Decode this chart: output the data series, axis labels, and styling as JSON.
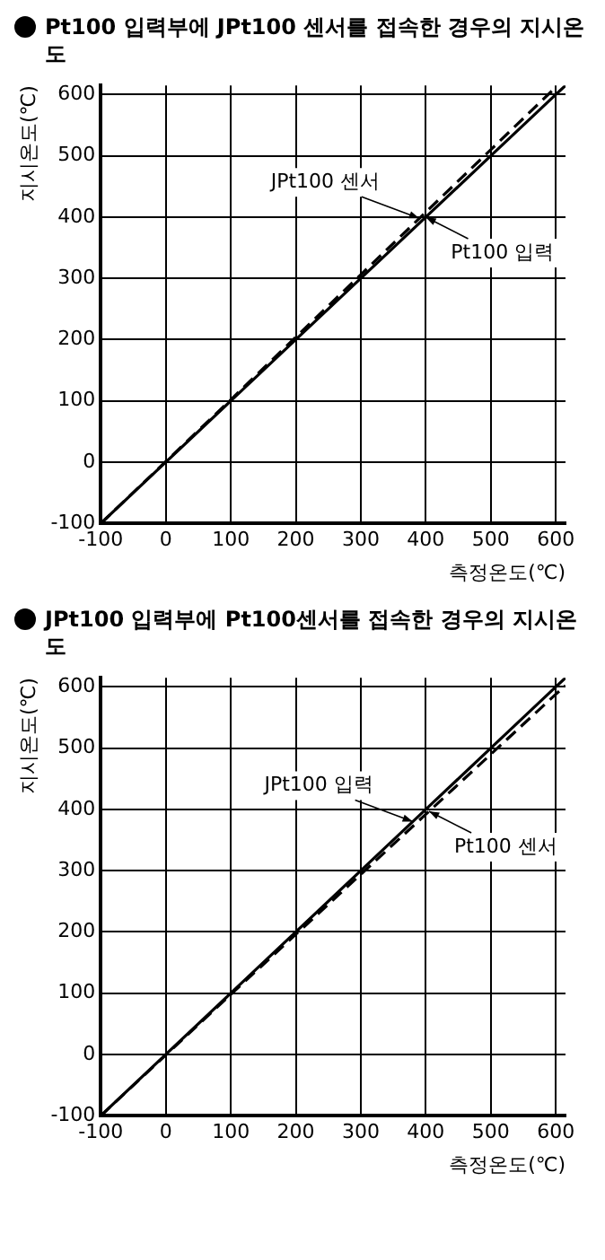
{
  "chart_data": [
    {
      "type": "line",
      "title": "Pt100 입력부에 JPt100 센서를 접속한 경우의 지시온도",
      "xlabel": "측정온도(℃)",
      "ylabel": "지시온도(℃)",
      "x": [
        -100,
        0,
        100,
        200,
        300,
        400,
        500,
        600,
        615
      ],
      "xlim": [
        -100,
        615
      ],
      "ylim": [
        -100,
        615
      ],
      "xticks": [
        -100,
        0,
        100,
        200,
        300,
        400,
        500,
        600
      ],
      "yticks": [
        -100,
        0,
        100,
        200,
        300,
        400,
        500,
        600
      ],
      "grid": true,
      "legend": false,
      "marker": "none",
      "series": [
        {
          "color": "#000000",
          "line_style": "solid",
          "values": [
            -100,
            0,
            100,
            200,
            300,
            400,
            500,
            600,
            615
          ]
        },
        {
          "color": "#000000",
          "line_style": "dashed",
          "values": [
            -100,
            1,
            102,
            204,
            306,
            408,
            510,
            612,
            null
          ]
        }
      ],
      "annotations": [
        {
          "text": "JPt100 센서",
          "x": 390,
          "y": 398
        },
        {
          "text": "Pt100 입력",
          "x": 400,
          "y": 400
        }
      ]
    },
    {
      "type": "line",
      "title": "JPt100 입력부에 Pt100센서를 접속한 경우의 지시온도",
      "xlabel": "측정온도(℃)",
      "ylabel": "지시온도(℃)",
      "x": [
        -100,
        0,
        100,
        200,
        300,
        400,
        500,
        600,
        615
      ],
      "xlim": [
        -100,
        615
      ],
      "ylim": [
        -100,
        615
      ],
      "xticks": [
        -100,
        0,
        100,
        200,
        300,
        400,
        500,
        600
      ],
      "yticks": [
        -100,
        0,
        100,
        200,
        300,
        400,
        500,
        600
      ],
      "grid": true,
      "legend": false,
      "marker": "none",
      "series": [
        {
          "color": "#000000",
          "line_style": "solid",
          "values": [
            -100,
            0,
            100,
            200,
            300,
            400,
            500,
            600,
            615
          ]
        },
        {
          "color": "#000000",
          "line_style": "dashed",
          "values": [
            -100,
            -1,
            98,
            196,
            294,
            392,
            490,
            588,
            602
          ]
        }
      ],
      "annotations": [
        {
          "text": "JPt100 입력",
          "x": 380,
          "y": 380
        },
        {
          "text": "Pt100 센서",
          "x": 405,
          "y": 397
        }
      ]
    }
  ]
}
